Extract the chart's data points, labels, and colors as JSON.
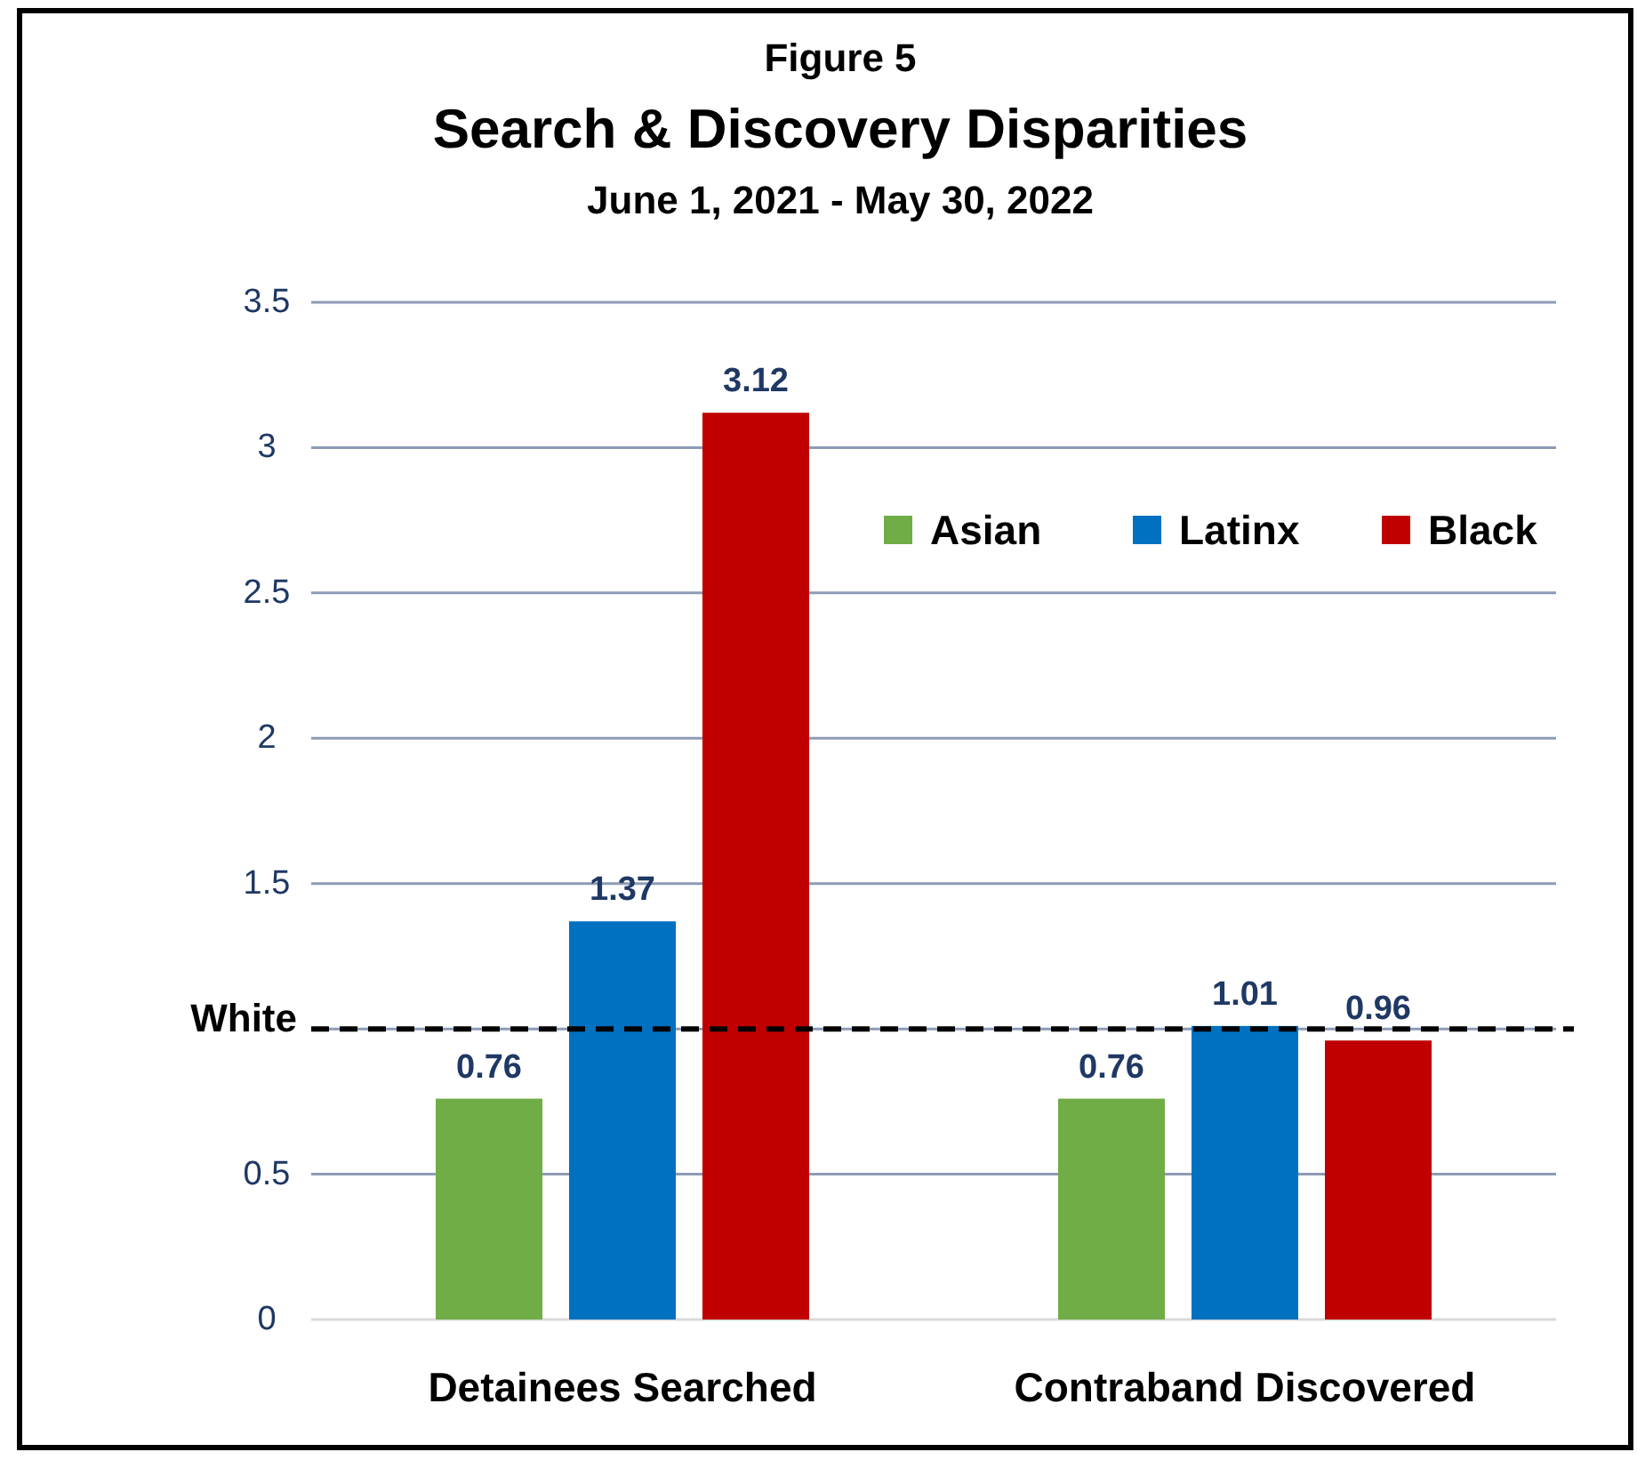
{
  "chart_data": {
    "type": "bar",
    "title": "Search & Discovery Disparities",
    "subtitle": "June 1, 2021 - May 30, 2022",
    "annotations": [
      "Figure 5"
    ],
    "categories": [
      "Detainees Searched",
      "Contraband Discovered"
    ],
    "series": [
      {
        "name": "Asian",
        "color": "#70ad47",
        "values": [
          0.76,
          0.76
        ]
      },
      {
        "name": "Latinx",
        "color": "#0070c0",
        "values": [
          1.37,
          1.01
        ]
      },
      {
        "name": "Black",
        "color": "#c00000",
        "values": [
          3.12,
          0.96
        ]
      }
    ],
    "ylim": [
      0,
      3.5
    ],
    "yticks": [
      0,
      0.5,
      {
        "value": 1,
        "label": null
      },
      1.5,
      2,
      2.5,
      3,
      3.5
    ],
    "grid": "y",
    "data_labels": true,
    "legend": "top right",
    "ref_lines": [
      {
        "axis": "y",
        "value": 1,
        "label": "White",
        "color": "#000000",
        "line_style": "dashed"
      }
    ]
  }
}
